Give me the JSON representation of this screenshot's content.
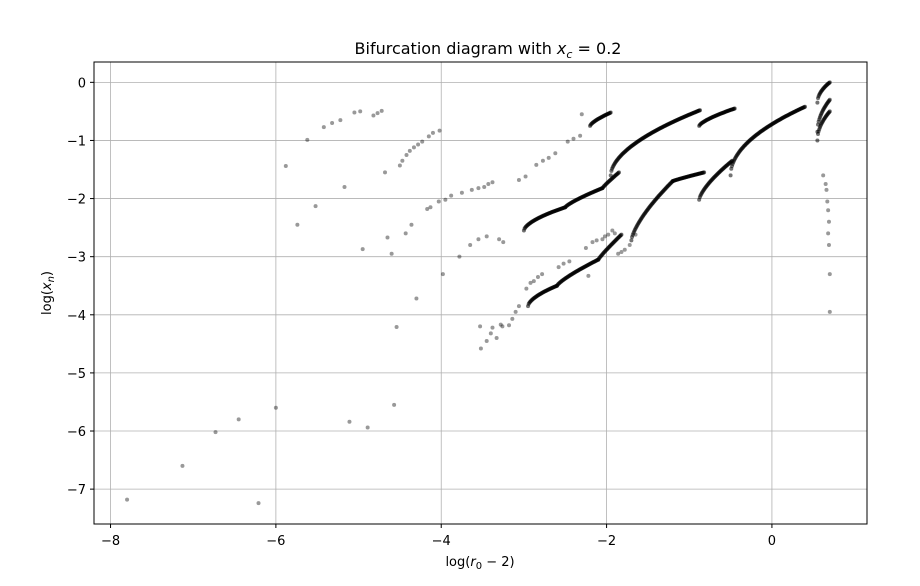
{
  "chart_data": {
    "type": "scatter",
    "title": "Bifurcation diagram with x_c = 0.2",
    "title_parts": {
      "prefix": "Bifurcation diagram with ",
      "var": "x",
      "sub": "c",
      "suffix": " = 0.2"
    },
    "xlabel": "log(r0 − 2)",
    "xlabel_parts": {
      "prefix": "log(",
      "var": "r",
      "sub": "0",
      "suffix": " − 2)"
    },
    "ylabel": "log(x_n)",
    "ylabel_parts": {
      "prefix": "log(",
      "var": "x",
      "sub": "n",
      "suffix": ")"
    },
    "xlim": [
      -8.2,
      1.15
    ],
    "ylim": [
      -7.6,
      0.35
    ],
    "xticks": [
      -8,
      -6,
      -4,
      -2,
      0
    ],
    "yticks": [
      0,
      -1,
      -2,
      -3,
      -4,
      -5,
      -6,
      -7
    ],
    "xtick_labels": [
      "−8",
      "−6",
      "−4",
      "−2",
      "0"
    ],
    "ytick_labels": [
      "0",
      "−1",
      "−2",
      "−3",
      "−4",
      "−5",
      "−6",
      "−7"
    ],
    "grid": true,
    "colors": {
      "points": "#000000",
      "grid": "#b0b0b0",
      "axes": "#000000"
    },
    "series": [
      {
        "values": [
          [
            -7.8,
            -7.18
          ],
          [
            -7.13,
            -6.6
          ],
          [
            -6.73,
            -6.02
          ],
          [
            -6.45,
            -5.8
          ],
          [
            -6.21,
            -7.24
          ],
          [
            -6.0,
            -5.6
          ],
          [
            -5.88,
            -1.44
          ],
          [
            -5.74,
            -2.45
          ],
          [
            -5.62,
            -0.99
          ],
          [
            -5.52,
            -2.13
          ],
          [
            -5.42,
            -0.77
          ],
          [
            -5.32,
            -0.7
          ],
          [
            -5.22,
            -0.65
          ],
          [
            -5.17,
            -1.8
          ],
          [
            -5.11,
            -5.84
          ],
          [
            -5.05,
            -0.52
          ],
          [
            -4.98,
            -0.5
          ],
          [
            -4.95,
            -2.87
          ],
          [
            -4.89,
            -5.94
          ],
          [
            -4.82,
            -0.57
          ],
          [
            -4.77,
            -0.53
          ],
          [
            -4.72,
            -0.49
          ],
          [
            -4.68,
            -1.55
          ],
          [
            -4.65,
            -2.67
          ],
          [
            -4.6,
            -2.95
          ],
          [
            -4.57,
            -5.55
          ],
          [
            -4.54,
            -4.21
          ],
          [
            -4.5,
            -1.43
          ],
          [
            -4.47,
            -1.35
          ],
          [
            -4.43,
            -2.6
          ],
          [
            -4.42,
            -1.25
          ],
          [
            -4.38,
            -1.18
          ],
          [
            -4.36,
            -2.45
          ],
          [
            -4.33,
            -1.12
          ],
          [
            -4.3,
            -3.72
          ],
          [
            -4.28,
            -1.07
          ],
          [
            -4.23,
            -1.02
          ],
          [
            -4.17,
            -2.18
          ],
          [
            -4.15,
            -0.93
          ],
          [
            -4.13,
            -2.15
          ],
          [
            -4.1,
            -0.87
          ],
          [
            -4.03,
            -2.05
          ],
          [
            -4.02,
            -0.83
          ],
          [
            -3.95,
            -2.02
          ],
          [
            -3.98,
            -3.3
          ],
          [
            -3.88,
            -1.95
          ],
          [
            -3.75,
            -1.9
          ],
          [
            -3.63,
            -1.85
          ],
          [
            -3.55,
            -1.82
          ],
          [
            -3.48,
            -1.8
          ],
          [
            -3.43,
            -1.75
          ],
          [
            -3.38,
            -1.72
          ],
          [
            -3.53,
            -4.2
          ],
          [
            -3.52,
            -4.58
          ],
          [
            -3.45,
            -4.45
          ],
          [
            -3.4,
            -4.32
          ],
          [
            -3.38,
            -4.22
          ],
          [
            -3.33,
            -4.4
          ],
          [
            -3.28,
            -4.17
          ],
          [
            -3.26,
            -4.2
          ],
          [
            -3.18,
            -4.18
          ],
          [
            -3.14,
            -4.07
          ],
          [
            -3.1,
            -3.95
          ],
          [
            -3.06,
            -3.85
          ],
          [
            -3.06,
            -1.68
          ],
          [
            -2.98,
            -1.62
          ],
          [
            -2.97,
            -3.55
          ],
          [
            -2.92,
            -3.45
          ],
          [
            -2.88,
            -3.42
          ],
          [
            -2.85,
            -1.42
          ],
          [
            -2.83,
            -3.35
          ],
          [
            -2.78,
            -3.3
          ],
          [
            -2.77,
            -1.35
          ],
          [
            -2.7,
            -1.3
          ],
          [
            -2.62,
            -1.22
          ],
          [
            -2.58,
            -3.18
          ],
          [
            -2.52,
            -3.12
          ],
          [
            -2.47,
            -1.02
          ],
          [
            -2.45,
            -3.08
          ],
          [
            -2.4,
            -0.97
          ],
          [
            -2.32,
            -0.92
          ],
          [
            -2.22,
            -3.33
          ],
          [
            -2.25,
            -2.85
          ],
          [
            -2.17,
            -2.75
          ],
          [
            -2.12,
            -2.72
          ],
          [
            -2.05,
            -2.7
          ],
          [
            -2.02,
            -2.65
          ],
          [
            -1.98,
            -2.62
          ],
          [
            -2.3,
            -0.55
          ],
          [
            -1.93,
            -2.55
          ],
          [
            -1.9,
            -2.6
          ],
          [
            -1.86,
            -2.95
          ],
          [
            -1.82,
            -2.92
          ],
          [
            -1.78,
            -2.88
          ],
          [
            -1.72,
            -2.8
          ],
          [
            -1.65,
            -2.62
          ],
          [
            -3.78,
            -3.0
          ],
          [
            -3.65,
            -2.8
          ],
          [
            -3.55,
            -2.7
          ],
          [
            -3.45,
            -2.65
          ],
          [
            -3.3,
            -2.7
          ],
          [
            -3.25,
            -2.75
          ],
          [
            0.7,
            -3.95
          ],
          [
            0.7,
            -3.3
          ],
          [
            0.69,
            -2.8
          ],
          [
            0.68,
            -2.6
          ],
          [
            0.69,
            -2.4
          ],
          [
            0.68,
            -2.2
          ],
          [
            0.67,
            -2.05
          ],
          [
            0.66,
            -1.85
          ],
          [
            0.65,
            -1.75
          ],
          [
            0.62,
            -1.6
          ]
        ],
        "branches": [
          {
            "x_range": [
              -3.0,
              -2.5
            ],
            "y_range": [
              -2.15,
              -2.55
            ],
            "curve": 0.6
          },
          {
            "x_range": [
              -2.5,
              -2.05
            ],
            "y_range": [
              -1.82,
              -2.15
            ],
            "curve": 0.8
          },
          {
            "x_range": [
              -2.05,
              -1.85
            ],
            "y_range": [
              -1.55,
              -1.82
            ],
            "curve": 0.9
          },
          {
            "x_range": [
              -2.95,
              -2.6
            ],
            "y_range": [
              -3.5,
              -3.85
            ],
            "curve": 0.6
          },
          {
            "x_range": [
              -2.6,
              -2.1
            ],
            "y_range": [
              -3.05,
              -3.5
            ],
            "curve": 0.8
          },
          {
            "x_range": [
              -2.1,
              -1.82
            ],
            "y_range": [
              -2.62,
              -3.05
            ],
            "curve": 0.9
          },
          {
            "x_range": [
              -2.2,
              -1.95
            ],
            "y_range": [
              -0.52,
              -0.75
            ],
            "curve": 0.7
          },
          {
            "x_range": [
              -1.95,
              -0.87
            ],
            "y_range": [
              -0.48,
              -1.6
            ],
            "curve": 0.55
          },
          {
            "x_range": [
              -1.7,
              -1.2
            ],
            "y_range": [
              -1.7,
              -2.72
            ],
            "curve": 0.7
          },
          {
            "x_range": [
              -1.2,
              -0.82
            ],
            "y_range": [
              -1.55,
              -1.7
            ],
            "curve": 0.9
          },
          {
            "x_range": [
              -0.88,
              -0.45
            ],
            "y_range": [
              -0.45,
              -0.75
            ],
            "curve": 0.7
          },
          {
            "x_range": [
              -0.88,
              -0.48
            ],
            "y_range": [
              -1.35,
              -2.02
            ],
            "curve": 0.7
          },
          {
            "x_range": [
              -0.5,
              0.4
            ],
            "y_range": [
              -0.42,
              -1.6
            ],
            "curve": 0.5
          },
          {
            "x_range": [
              0.55,
              0.7
            ],
            "y_range": [
              0.0,
              -0.35
            ],
            "curve": 0.5
          },
          {
            "x_range": [
              0.55,
              0.7
            ],
            "y_range": [
              -0.5,
              -1.0
            ],
            "curve": 0.5
          },
          {
            "x_range": [
              0.55,
              0.7
            ],
            "y_range": [
              -0.3,
              -0.85
            ],
            "curve": 0.5
          }
        ]
      }
    ]
  }
}
